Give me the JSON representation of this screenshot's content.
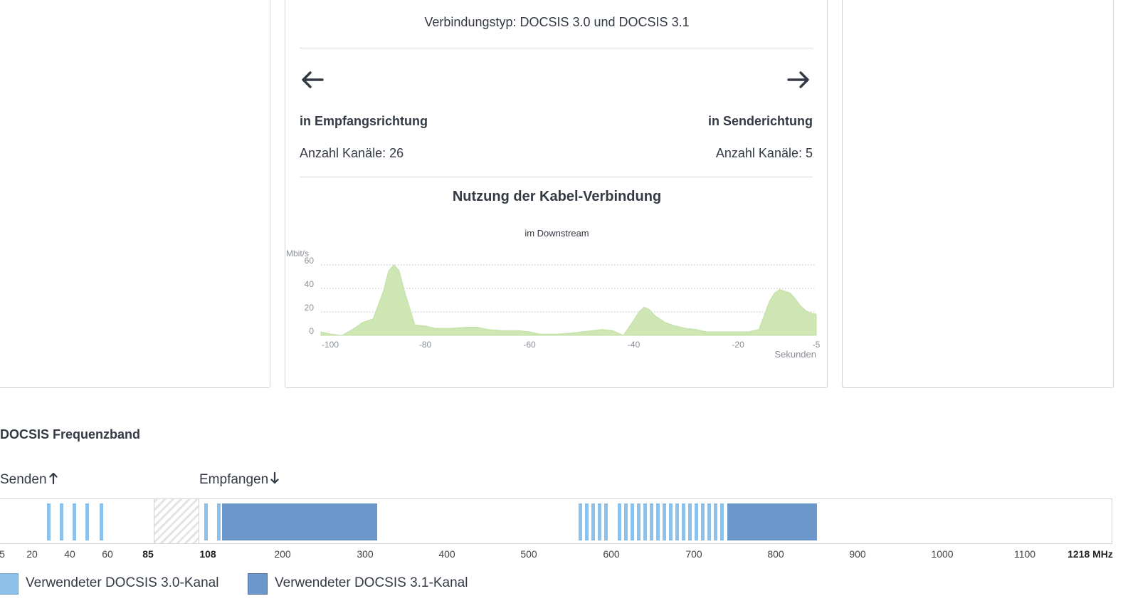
{
  "connection": {
    "type_text": "Verbindungstyp: DOCSIS 3.0 und DOCSIS 3.1",
    "receive": {
      "label": "in Empfangsrichtung",
      "channels": "Anzahl Kanäle: 26",
      "icon": "arrow-left-icon"
    },
    "send": {
      "label": "in Senderichtung",
      "channels": "Anzahl Kanäle: 5",
      "icon": "arrow-right-icon"
    }
  },
  "usage": {
    "title": "Nutzung der Kabel-Verbindung",
    "subtitle": "im Downstream"
  },
  "chart_data": {
    "type": "area",
    "title": "im Downstream",
    "ylabel": "Mbit/s",
    "xlabel": "Sekunden",
    "xlim": [
      -100,
      -5
    ],
    "ylim": [
      0,
      60
    ],
    "yticks": [
      0,
      20,
      40,
      60
    ],
    "xticks": [
      -100,
      -80,
      -60,
      -40,
      -20,
      -5
    ],
    "grid": true,
    "color": "#cde6b3",
    "series": [
      {
        "x": [
          -102,
          -100,
          -98,
          -96,
          -94,
          -92,
          -90,
          -88,
          -87,
          -86,
          -85,
          -84,
          -82,
          -80,
          -78,
          -75,
          -72,
          -70,
          -68,
          -65,
          -62,
          -60,
          -58,
          -55,
          -52,
          -50,
          -48,
          -46,
          -44,
          -43,
          -42,
          -40,
          -39,
          -38,
          -37,
          -36,
          -34,
          -32,
          -30,
          -28,
          -26,
          -24,
          -22,
          -20,
          -18,
          -16,
          -15,
          -14,
          -13,
          -12,
          -10,
          -9,
          -8,
          -7,
          -6,
          -5
        ],
        "y": [
          3,
          3,
          1,
          0,
          5,
          11,
          14,
          38,
          55,
          60,
          55,
          38,
          9,
          8,
          6,
          6,
          7,
          7,
          5,
          4,
          4,
          3,
          1,
          1,
          2,
          3,
          4,
          5,
          4,
          2,
          0,
          13,
          20,
          24,
          22,
          17,
          11,
          8,
          6,
          5,
          3,
          3,
          3,
          3,
          3,
          5,
          17,
          29,
          36,
          39,
          36,
          31,
          25,
          21,
          19,
          18
        ]
      }
    ]
  },
  "band": {
    "title": "DOCSIS Frequenzband",
    "send_label": "Senden",
    "receive_label": "Empfangen",
    "ticks": [
      "5",
      "20",
      "40",
      "60",
      "85",
      "108",
      "200",
      "300",
      "400",
      "500",
      "600",
      "700",
      "800",
      "900",
      "1000",
      "1100",
      "1218 MHz"
    ],
    "legend": {
      "docsis30": "Verwendeter DOCSIS 3.0-Kanal",
      "docsis31": "Verwendeter DOCSIS 3.1-Kanal",
      "color30": "#8ec1ea",
      "color31": "#6c97cb"
    }
  }
}
